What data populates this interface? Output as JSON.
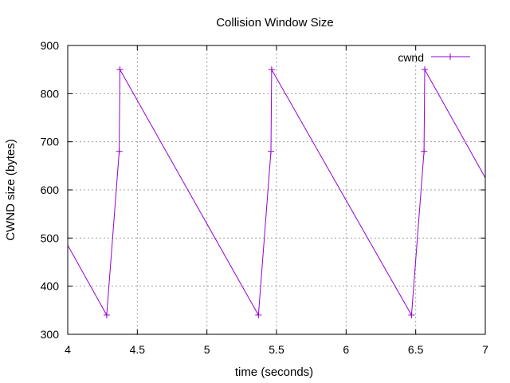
{
  "chart_data": {
    "type": "line",
    "title": "Collision Window Size",
    "xlabel": "time (seconds)",
    "ylabel": "CWND size (bytes)",
    "xlim": [
      4,
      7
    ],
    "ylim": [
      300,
      900
    ],
    "xticks": [
      4,
      4.5,
      5,
      5.5,
      6,
      6.5,
      7
    ],
    "xtick_labels": [
      "4",
      "4.5",
      "5",
      "5.5",
      "6",
      "6.5",
      "7"
    ],
    "yticks": [
      300,
      400,
      500,
      600,
      700,
      800,
      900
    ],
    "ytick_labels": [
      "300",
      "400",
      "500",
      "600",
      "700",
      "800",
      "900"
    ],
    "grid": true,
    "legend_position": "top-right",
    "series": [
      {
        "name": "cwnd",
        "color": "#9400d3",
        "marker": "plus",
        "points": [
          {
            "x": 4.0,
            "y": 485
          },
          {
            "x": 4.28,
            "y": 340
          },
          {
            "x": 4.37,
            "y": 680
          },
          {
            "x": 4.375,
            "y": 850
          },
          {
            "x": 5.37,
            "y": 340
          },
          {
            "x": 5.46,
            "y": 680
          },
          {
            "x": 5.465,
            "y": 850
          },
          {
            "x": 6.47,
            "y": 340
          },
          {
            "x": 6.56,
            "y": 680
          },
          {
            "x": 6.565,
            "y": 850
          },
          {
            "x": 7.0,
            "y": 625
          }
        ],
        "marker_x": [
          4.28,
          4.37,
          4.375,
          5.37,
          5.46,
          5.465,
          6.47,
          6.56,
          6.565
        ]
      }
    ]
  }
}
